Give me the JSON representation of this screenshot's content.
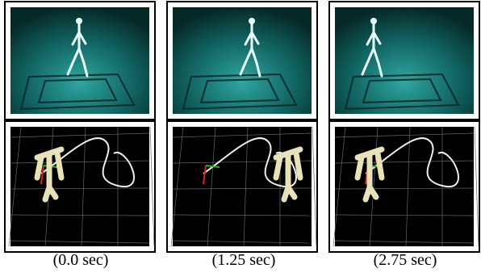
{
  "captions": [
    "(0.0 sec)",
    "(1.25 sec)",
    "(2.75 sec)"
  ]
}
